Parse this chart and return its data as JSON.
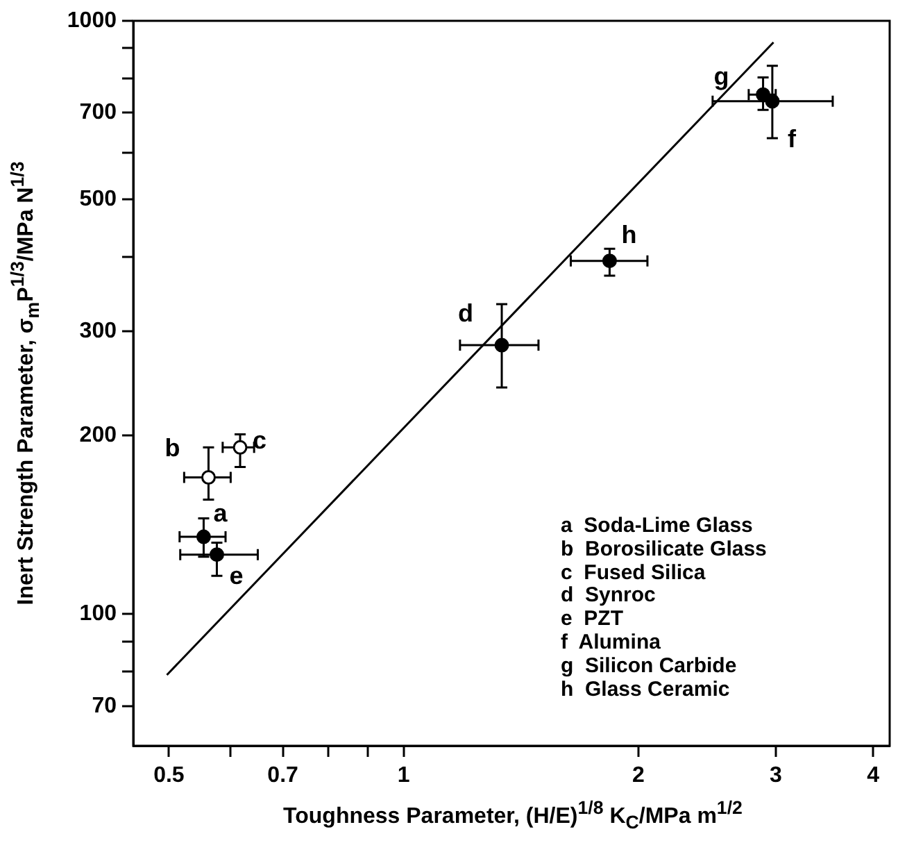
{
  "chart_data": {
    "type": "scatter",
    "xlabel": "Toughness Parameter, (H/E)$^{1/8}$ K$_{C}$/MPa m$^{1/2}$",
    "ylabel": "Inert Strength Parameter, σ$_{m}$P$^{1/3}$/MPa N$^{1/3}$",
    "log": "xy",
    "grid": false,
    "legend": false,
    "marker": "circle",
    "xlim": [
      0.45,
      4.2
    ],
    "xticks": [
      0.5,
      {
        "value": 0.6,
        "label": null
      },
      0.7,
      {
        "value": 0.8,
        "label": null
      },
      {
        "value": 0.9,
        "label": null
      },
      1,
      2,
      3,
      4
    ],
    "ylim": [
      60,
      1000
    ],
    "yticks": [
      70,
      {
        "value": 80,
        "label": null
      },
      {
        "value": 90,
        "label": null
      },
      100,
      200,
      300,
      {
        "value": 400,
        "label": null
      },
      500,
      {
        "value": 600,
        "label": null
      },
      700,
      {
        "value": 800,
        "label": null
      },
      {
        "value": 900,
        "label": null
      },
      1000
    ],
    "series": [
      {
        "type": "scatter",
        "color": "#000000",
        "x": [
          0.554,
          0.576,
          1.336,
          1.837,
          2.89,
          2.97
        ],
        "values": [
          135,
          126,
          284,
          394,
          751,
          732
        ],
        "errors": [
          [
            125,
            145
          ],
          [
            116,
            132
          ],
          [
            241,
            333
          ],
          [
            372,
            413
          ],
          [
            708,
            803
          ],
          [
            634,
            840
          ]
        ],
        "xerrors": [
          [
            0.516,
            0.591
          ],
          [
            0.517,
            0.65
          ],
          [
            1.181,
            1.489
          ],
          [
            1.638,
            2.054
          ],
          [
            2.77,
            3.0
          ],
          [
            2.49,
            3.55
          ]
        ]
      },
      {
        "type": "scatter",
        "color": "#ffffff",
        "x": [
          0.562,
          0.617
        ],
        "values": [
          170,
          191
        ],
        "errors": [
          [
            156,
            191
          ],
          [
            177,
            201
          ]
        ],
        "xerrors": [
          [
            0.523,
            0.6
          ],
          [
            0.586,
            0.643
          ]
        ]
      },
      {
        "type": "line",
        "color": "#000000",
        "marker": "none",
        "x": [
          0.497,
          2.98
        ],
        "values": [
          79,
          920
        ]
      }
    ],
    "annotations": [
      {
        "text": "a",
        "x": 0.554,
        "y": 135
      },
      {
        "text": "b",
        "x": 0.562,
        "y": 170
      },
      {
        "text": "c",
        "x": 0.617,
        "y": 191
      },
      {
        "text": "d",
        "x": 1.336,
        "y": 284
      },
      {
        "text": "e",
        "x": 0.576,
        "y": 126
      },
      {
        "text": "f",
        "x": 2.97,
        "y": 732
      },
      {
        "text": "g",
        "x": 2.89,
        "y": 751
      },
      {
        "text": "h",
        "x": 1.837,
        "y": 394
      },
      "a  Soda-Lime Glass",
      "b  Borosilicate Glass",
      "c  Fused Silica",
      "d  Synroc",
      "e  PZT",
      "f  Alumina",
      "g  Silicon Carbide",
      "h  Glass Ceramic"
    ]
  }
}
